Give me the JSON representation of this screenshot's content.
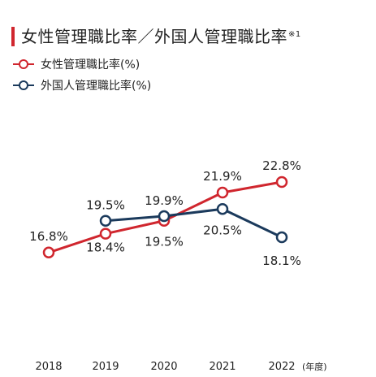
{
  "colors": {
    "accent": "#d0262e",
    "red": "#d0262e",
    "navy": "#1b3a5c"
  },
  "header": {
    "title": "女性管理職比率／外国人管理職比率",
    "note_mark": "※1"
  },
  "chart_data": {
    "type": "line",
    "title": "女性管理職比率／外国人管理職比率",
    "categories": [
      "2018",
      "2019",
      "2020",
      "2021",
      "2022"
    ],
    "x_unit": "(年度)",
    "series": [
      {
        "name": "女性管理職比率(%)",
        "color": "#d0262e",
        "values": [
          16.8,
          18.4,
          19.5,
          21.9,
          22.8
        ],
        "labels": [
          "16.8%",
          "18.4%",
          "19.5%",
          "21.9%",
          "22.8%"
        ]
      },
      {
        "name": "外国人管理職比率(%)",
        "color": "#1b3a5c",
        "values": [
          null,
          19.5,
          19.9,
          20.5,
          18.1
        ],
        "labels": [
          "",
          "19.5%",
          "19.9%",
          "20.5%",
          "18.1%"
        ]
      }
    ],
    "grid": false,
    "legend_position": "top-left"
  }
}
